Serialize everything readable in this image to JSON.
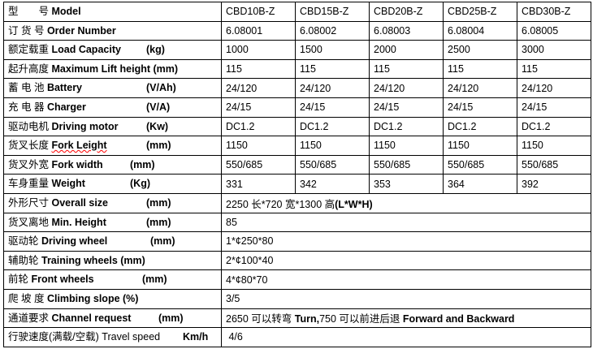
{
  "models": [
    "CBD10B-Z",
    "CBD15B-Z",
    "CBD20B-Z",
    "CBD25B-Z",
    "CBD30B-Z"
  ],
  "rows": [
    {
      "cn": "型　　号",
      "en": "Model",
      "unit": "",
      "values": [
        "CBD10B-Z",
        "CBD15B-Z",
        "CBD20B-Z",
        "CBD25B-Z",
        "CBD30B-Z"
      ]
    },
    {
      "cn": "订 货 号",
      "en": "Order Number",
      "unit": "",
      "values": [
        "6.08001",
        "6.08002",
        "6.08003",
        "6.08004",
        "6.08005"
      ]
    },
    {
      "cn": "额定载重",
      "en": "Load Capacity",
      "unit": "(kg)",
      "values": [
        "1000",
        "1500",
        "2000",
        "2500",
        "3000"
      ]
    },
    {
      "cn": "起升高度",
      "en": "Maximum Lift height (mm)",
      "unit": "",
      "values": [
        "115",
        "115",
        "115",
        "115",
        "115"
      ]
    },
    {
      "cn": "蓄 电 池",
      "en": "Battery",
      "unit": "(V/Ah)",
      "values": [
        "24/120",
        "24/120",
        "24/120",
        "24/120",
        "24/120"
      ]
    },
    {
      "cn": "充 电 器",
      "en": "Charger",
      "unit": "(V/A)",
      "values": [
        "24/15",
        "24/15",
        "24/15",
        "24/15",
        "24/15"
      ]
    },
    {
      "cn": "驱动电机",
      "en": "Driving motor",
      "unit": "(Kw)",
      "values": [
        "DC1.2",
        "DC1.2",
        "DC1.2",
        "DC1.2",
        "DC1.2"
      ]
    },
    {
      "cn": "货叉长度",
      "en": "Fork Leight",
      "unit": "(mm)",
      "values": [
        "1150",
        "1150",
        "1150",
        "1150",
        "1150"
      ]
    },
    {
      "cn": "货叉外宽",
      "en": "Fork width",
      "unit": "(mm)",
      "values": [
        "550/685",
        "550/685",
        "550/685",
        "550/685",
        "550/685"
      ]
    },
    {
      "cn": "车身重量",
      "en": "Weight",
      "unit": "(Kg)",
      "values": [
        "331",
        "342",
        "353",
        "364",
        "392"
      ]
    }
  ],
  "merged_rows": [
    {
      "cn": "外形尺寸",
      "en": "Overall size",
      "unit": "(mm)",
      "value_pre": "2250 长*720 宽*1300 高",
      "value_bold": "(L*W*H)"
    },
    {
      "cn": "货叉离地",
      "en": "Min. Height",
      "unit": "(mm)",
      "value_pre": "85",
      "value_bold": ""
    },
    {
      "cn": "驱动轮 ",
      "en": "Driving wheel",
      "unit": "(mm)",
      "value_pre": "1*¢250*80",
      "value_bold": ""
    },
    {
      "cn": "辅助轮",
      "en": "Training wheels (mm)",
      "unit": "",
      "value_pre": "2*¢100*40",
      "value_bold": ""
    },
    {
      "cn": "前轮",
      "en": "Front wheels",
      "unit": "(mm)",
      "value_pre": "4*¢80*70",
      "value_bold": ""
    },
    {
      "cn": "爬 坡 度",
      "en": "Climbing slope (%)",
      "unit": "",
      "value_pre": "3/5",
      "value_bold": ""
    },
    {
      "cn": "通道要求",
      "en": "Channel request",
      "unit": "(mm)",
      "value_pre": "2650 可以转弯 ",
      "value_bold": "Turn,",
      "value_mid": "750 可以前进后退 ",
      "value_bold2": "Forward and Backward"
    },
    {
      "cn": "行驶速度(满载/空载)",
      "en": "Travel speed",
      "unit": "Km/h",
      "value_pre": " 4/6",
      "value_bold": ""
    }
  ]
}
